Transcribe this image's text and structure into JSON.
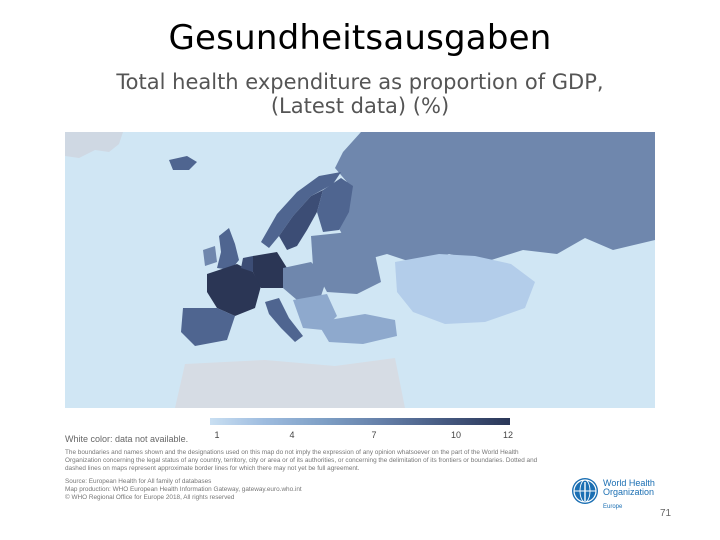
{
  "slide": {
    "title": "Gesundheitsausgaben",
    "page_number": "71"
  },
  "map": {
    "title_line1": "Total health expenditure as proportion of GDP,",
    "title_line2": "(Latest data) (%)",
    "colors": {
      "sea": "#d0e6f4",
      "very_low": "#b3cdea",
      "low": "#8ea9cd",
      "mid": "#6f87ad",
      "high": "#4f6590",
      "very_high": "#2b3655"
    }
  },
  "legend": {
    "ticks": [
      "1",
      "4",
      "7",
      "10",
      "12"
    ],
    "white_note": "White color: data not available."
  },
  "footer": {
    "disclaimer_1": "The boundaries and names shown and the designations used on this map do not imply the expression of any opinion whatsoever on the part of the World Health",
    "disclaimer_2": "Organization concerning the legal status of any country, territory, city or area or of its authorities, or concerning the delimitation of its frontiers or boundaries. Dotted and",
    "disclaimer_3": "dashed lines on maps represent approximate border lines for which there may not yet be full agreement.",
    "source_1": "Source: European Health for All family of databases",
    "source_2": "Map production: WHO European Health Information Gateway, gateway.euro.who.int",
    "source_3": "© WHO Regional Office for Europe 2018, All rights reserved"
  },
  "logo": {
    "line1": "World Health",
    "line2": "Organization",
    "region": "Europe"
  }
}
